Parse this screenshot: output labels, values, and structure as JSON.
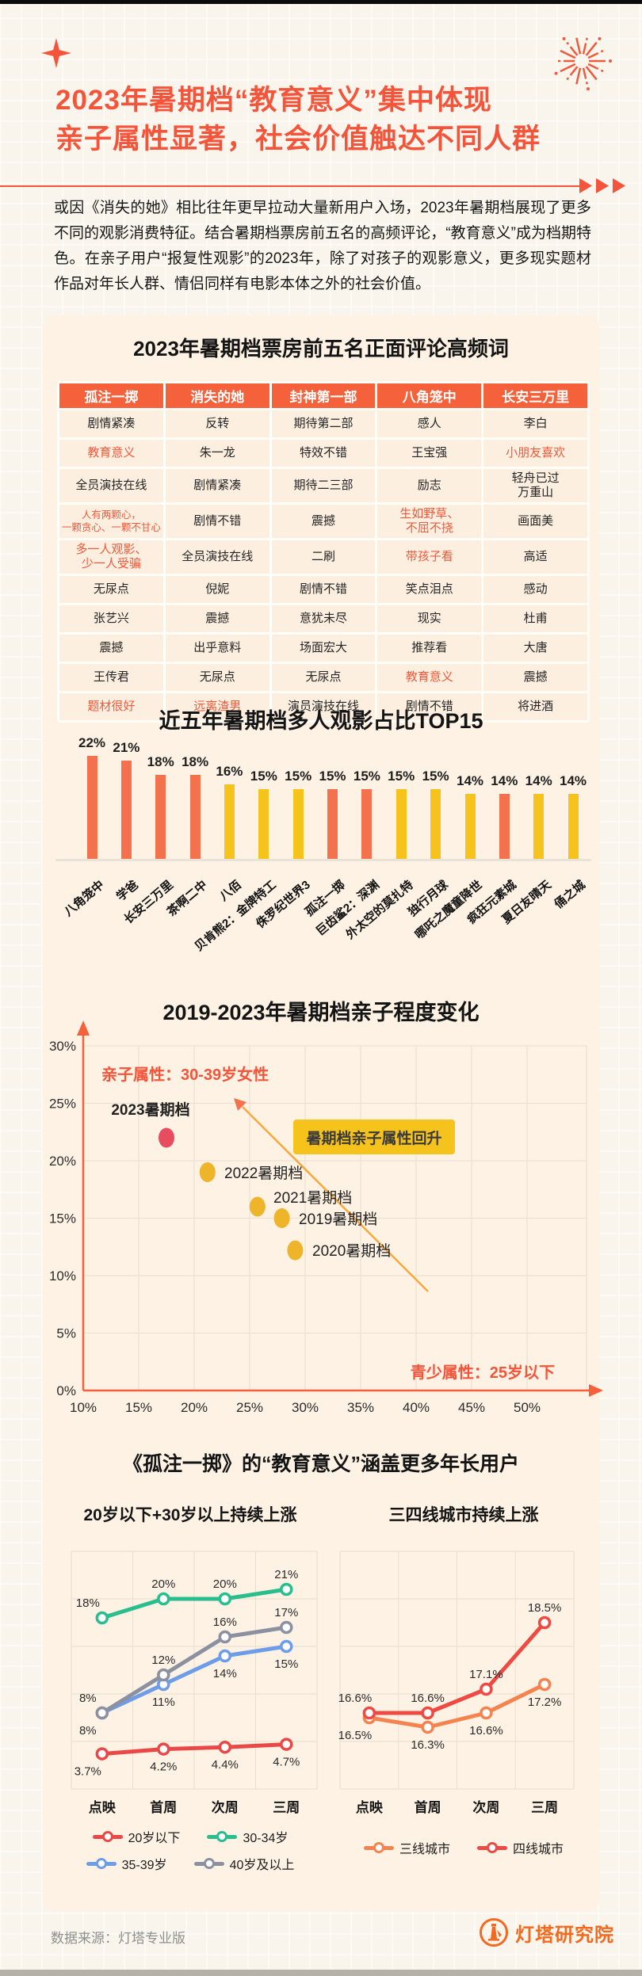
{
  "header": {
    "title_line1": "2023年暑期档“教育意义”集中体现",
    "title_line2": "亲子属性显著，社会价值触达不同人群",
    "intro": "或因《消失的她》相比往年更早拉动大量新用户入场，2023年暑期档展现了更多不同的观影消费特征。结合暑期档票房前五名的高频评论，“教育意义”成为档期特色。在亲子用户“报复性观影”的2023年，除了对孩子的观影意义，更多现实题材作品对年长人群、情侣同样有电影本体之外的社会价值。"
  },
  "comment_table": {
    "title": "2023年暑期档票房前五名正面评论高频词",
    "columns": [
      "孤注一掷",
      "消失的她",
      "封神第一部",
      "八角笼中",
      "长安三万里"
    ],
    "rows": [
      [
        {
          "t": "剧情紧凑"
        },
        {
          "t": "反转"
        },
        {
          "t": "期待第二部"
        },
        {
          "t": "感人"
        },
        {
          "t": "李白"
        }
      ],
      [
        {
          "t": "教育意义",
          "hl": true
        },
        {
          "t": "朱一龙"
        },
        {
          "t": "特效不错"
        },
        {
          "t": "王宝强"
        },
        {
          "t": "小朋友喜欢",
          "hl": true
        }
      ],
      [
        {
          "t": "全员演技在线"
        },
        {
          "t": "剧情紧凑"
        },
        {
          "t": "期待二三部"
        },
        {
          "t": "励志"
        },
        {
          "t": "轻舟已过\n万重山"
        }
      ],
      [
        {
          "t": "人有两颗心，\n一颗贪心、一颗不甘心",
          "hl": true
        },
        {
          "t": "剧情不错"
        },
        {
          "t": "震撼"
        },
        {
          "t": "生如野草、\n不屈不挠",
          "hl": true
        },
        {
          "t": "画面美"
        }
      ],
      [
        {
          "t": "多一人观影、\n少一人受骗",
          "hl": true
        },
        {
          "t": "全员演技在线"
        },
        {
          "t": "二刷"
        },
        {
          "t": "带孩子看",
          "hl": true
        },
        {
          "t": "高适"
        }
      ],
      [
        {
          "t": "无尿点"
        },
        {
          "t": "倪妮"
        },
        {
          "t": "剧情不错"
        },
        {
          "t": "笑点泪点"
        },
        {
          "t": "感动"
        }
      ],
      [
        {
          "t": "张艺兴"
        },
        {
          "t": "震撼"
        },
        {
          "t": "意犹未尽"
        },
        {
          "t": "现实"
        },
        {
          "t": "杜甫"
        }
      ],
      [
        {
          "t": "震撼"
        },
        {
          "t": "出乎意料"
        },
        {
          "t": "场面宏大"
        },
        {
          "t": "推荐看"
        },
        {
          "t": "大唐"
        }
      ],
      [
        {
          "t": "王传君"
        },
        {
          "t": "无尿点"
        },
        {
          "t": "无尿点"
        },
        {
          "t": "教育意义",
          "hl": true
        },
        {
          "t": "震撼"
        }
      ],
      [
        {
          "t": "题材很好",
          "hl": true
        },
        {
          "t": "远离渣男",
          "hl": true
        },
        {
          "t": "演员演技在线"
        },
        {
          "t": "剧情不错"
        },
        {
          "t": "将进酒"
        }
      ]
    ]
  },
  "chart_data": [
    {
      "type": "bar",
      "title": "近五年暑期档多人观影占比TOP15",
      "categories": [
        "八角笼中",
        "学爸",
        "长安三万里",
        "茶啊二中",
        "八佰",
        "贝肯熊2：金牌特工",
        "侏罗纪世界3",
        "孤注一掷",
        "巨齿鲨2：深渊",
        "外太空的莫扎特",
        "独行月球",
        "哪吒之魔童降世",
        "疯狂元素城",
        "夏日友晴天",
        "俑之城"
      ],
      "values": [
        22,
        21,
        18,
        18,
        16,
        15,
        15,
        15,
        15,
        15,
        15,
        14,
        14,
        14,
        14
      ],
      "highlight": [
        true,
        true,
        true,
        true,
        false,
        false,
        false,
        true,
        true,
        false,
        false,
        false,
        true,
        false,
        false
      ],
      "colors": {
        "highlight": "#f4714e",
        "default": "#f6c31c"
      },
      "unit": "%",
      "ylim": [
        0,
        25
      ]
    },
    {
      "type": "scatter",
      "title": "2019-2023年暑期档亲子程度变化",
      "xlim": [
        10,
        50
      ],
      "ylim": [
        0,
        30
      ],
      "tick_step": 5,
      "y_axis_note": "亲子属性：30-39岁女性",
      "x_axis_note": "青少属性：25岁以下",
      "callout": "暑期档亲子属性回升",
      "points": [
        {
          "label": "2023暑期档",
          "x": 17.5,
          "y": 22,
          "color": "#e84d5f",
          "highlight": true
        },
        {
          "label": "2022暑期档",
          "x": 21.2,
          "y": 19,
          "color": "#eeb42a"
        },
        {
          "label": "2021暑期档",
          "x": 25.7,
          "y": 16,
          "color": "#eeb42a"
        },
        {
          "label": "2019暑期档",
          "x": 27.9,
          "y": 15,
          "color": "#eeb42a"
        },
        {
          "label": "2020暑期档",
          "x": 29.1,
          "y": 12.2,
          "color": "#eeb42a"
        }
      ]
    },
    {
      "type": "line",
      "section_title": "《孤注一掷》的“教育意义”涵盖更多年长用户",
      "title": "20岁以下+30岁以上持续上涨",
      "categories": [
        "点映",
        "首周",
        "次周",
        "三周"
      ],
      "ylim": [
        0,
        25
      ],
      "grid_rows": 5,
      "series": [
        {
          "name": "20岁以下",
          "color": "#ea4747",
          "values": [
            3.7,
            4.2,
            4.4,
            4.7
          ],
          "label_side": "below"
        },
        {
          "name": "30-34岁",
          "color": "#2abd8d",
          "values": [
            18,
            20,
            20,
            21
          ],
          "label_side": "above"
        },
        {
          "name": "35-39岁",
          "color": "#6d9ce8",
          "values": [
            8,
            11,
            14,
            15
          ],
          "label_side": "below"
        },
        {
          "name": "40岁及以上",
          "color": "#8b91a0",
          "values": [
            8,
            12,
            16,
            17
          ],
          "label_side": "above"
        }
      ]
    },
    {
      "type": "line",
      "title": "三四线城市持续上涨",
      "categories": [
        "点映",
        "首周",
        "次周",
        "三周"
      ],
      "ylim": [
        15,
        20
      ],
      "grid_rows": 5,
      "series": [
        {
          "name": "三线城市",
          "color": "#f58350",
          "values": [
            16.5,
            16.3,
            16.6,
            17.2
          ],
          "label_side": "below"
        },
        {
          "name": "四线城市",
          "color": "#ee4a43",
          "values": [
            16.6,
            16.6,
            17.1,
            18.5
          ],
          "label_side": "above"
        }
      ]
    }
  ],
  "footer": {
    "source": "数据来源：灯塔专业版",
    "brand": "灯塔研究院"
  }
}
